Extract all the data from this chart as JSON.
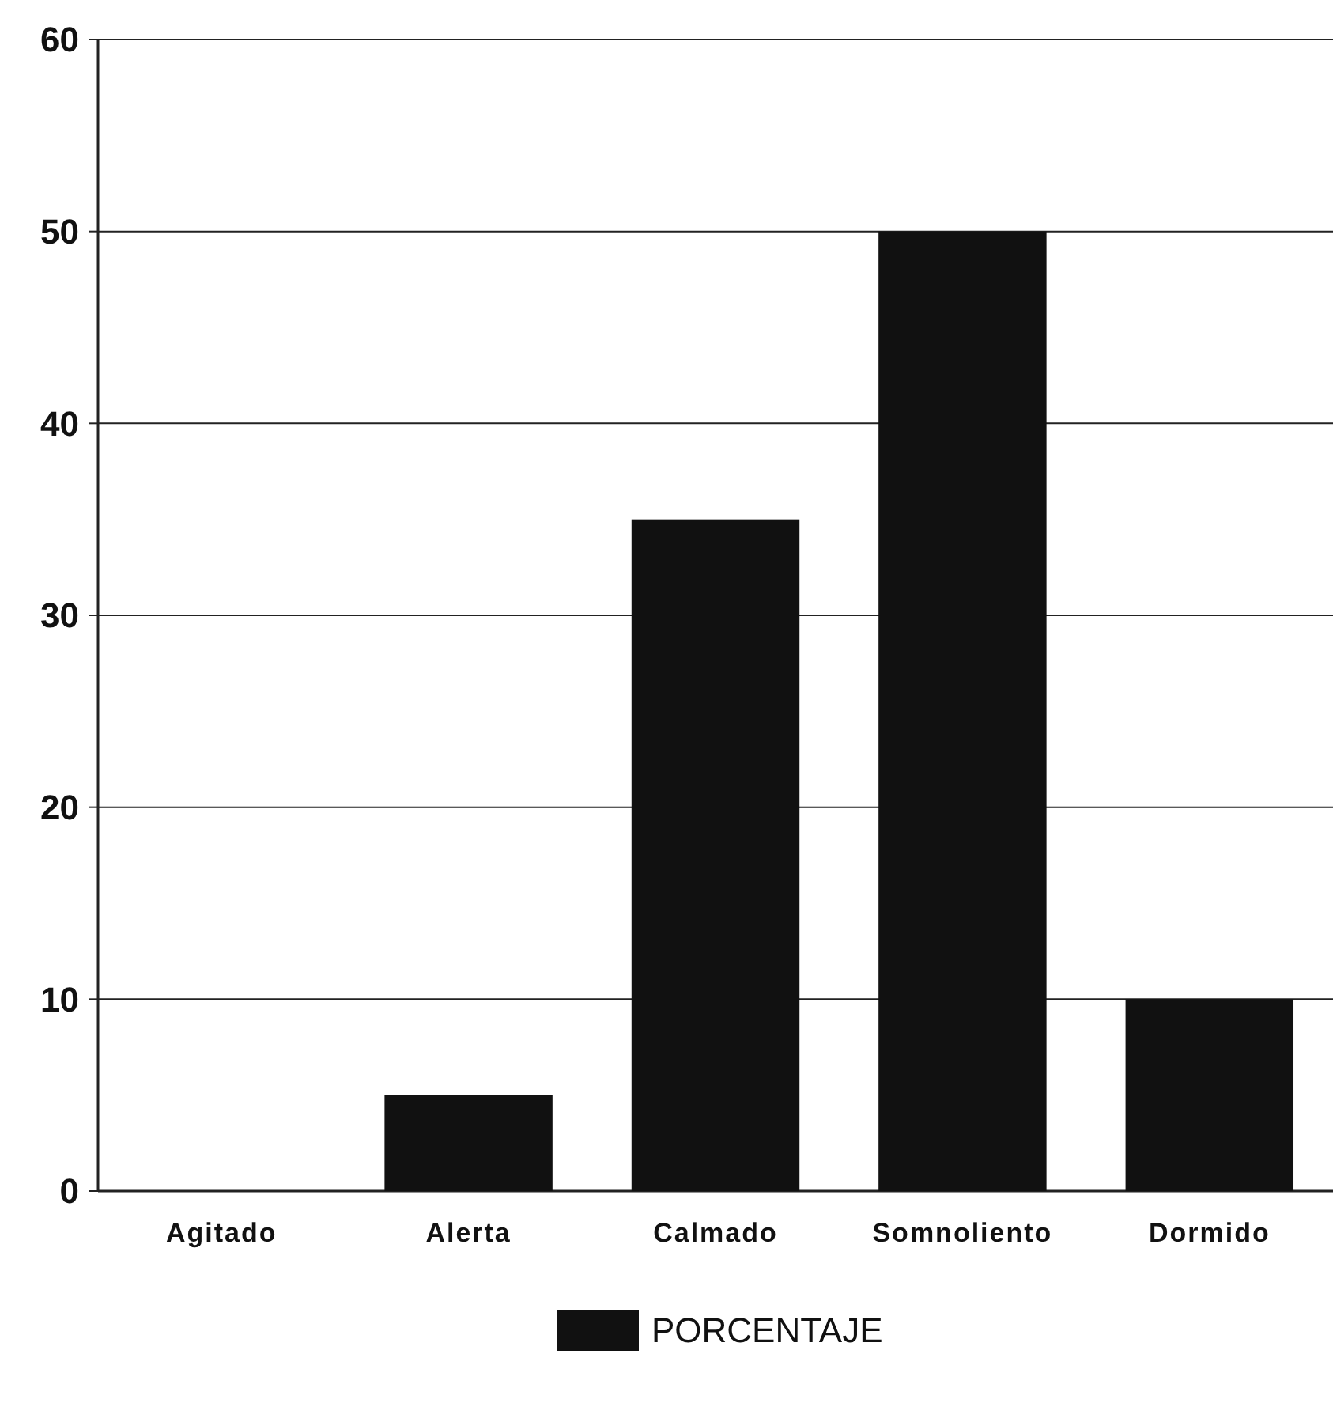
{
  "chart_data": {
    "type": "bar",
    "categories": [
      "Agitado",
      "Alerta",
      "Calmado",
      "Somnoliento",
      "Dormido"
    ],
    "series": [
      {
        "name": "PORCENTAJE",
        "color": "#111111",
        "values": [
          0,
          5,
          35,
          50,
          10
        ]
      }
    ],
    "ylim": [
      0,
      60
    ],
    "yticks": [
      0,
      10,
      20,
      30,
      40,
      50,
      60
    ],
    "grid": "y",
    "legend": "bottom"
  }
}
